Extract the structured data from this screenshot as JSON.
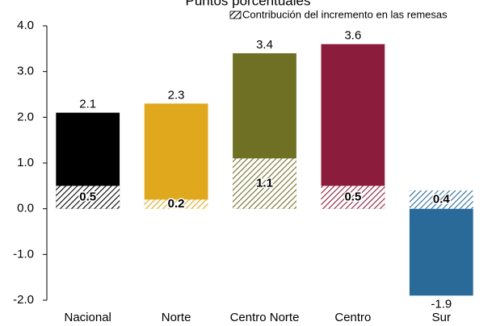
{
  "chart_data": {
    "type": "bar",
    "title": "Puntos porcentuales",
    "categories": [
      "Nacional",
      "Norte",
      "Centro Norte",
      "Centro",
      "Sur"
    ],
    "values": [
      2.1,
      2.3,
      3.4,
      3.6,
      -1.9
    ],
    "colors": [
      "#000000",
      "#e0a81c",
      "#6f7024",
      "#8c1c3c",
      "#2a6a99"
    ],
    "series": [
      {
        "name": "Contribución del incremento en las remesas",
        "values": [
          0.5,
          0.2,
          1.1,
          0.5,
          0.4
        ]
      }
    ],
    "ylim": [
      -2,
      4
    ],
    "yticks": [
      {
        "value": -2,
        "label": "-2.0"
      },
      {
        "value": -1,
        "label": "-1.0"
      },
      {
        "value": 0,
        "label": "0.0"
      },
      {
        "value": 1,
        "label": "1.0"
      },
      {
        "value": 2,
        "label": "2.0"
      },
      {
        "value": 3,
        "label": "3.0"
      },
      {
        "value": 4,
        "label": "4.0"
      }
    ]
  }
}
